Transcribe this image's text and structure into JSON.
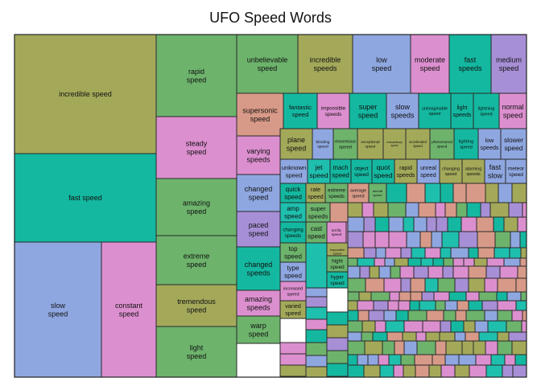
{
  "chart_data": {
    "type": "treemap",
    "title": "UFO Speed Words",
    "palette": [
      "#a4a95a",
      "#14b8a0",
      "#8fa7e0",
      "#dc8fcf",
      "#6db36c",
      "#d89a88",
      "#1fbfae",
      "#a78fd6"
    ],
    "labeled_tiles": [
      {
        "label": "incredible speed",
        "value": 86
      },
      {
        "label": "fast speed",
        "value": 60
      },
      {
        "label": "slow speed",
        "value": 55
      },
      {
        "label": "constant speed",
        "value": 34
      },
      {
        "label": "rapid speed",
        "value": 28
      },
      {
        "label": "steady speed",
        "value": 19
      },
      {
        "label": "amazing speed",
        "value": 18
      },
      {
        "label": "extreme speed",
        "value": 17
      },
      {
        "label": "tremendous speed",
        "value": 13
      },
      {
        "label": "light speed",
        "value": 13
      },
      {
        "label": "unbelievable speed",
        "value": 8
      },
      {
        "label": "incredible speeds",
        "value": 8
      },
      {
        "label": "low speed",
        "value": 8
      },
      {
        "label": "moderate speed",
        "value": 6
      },
      {
        "label": "fast speeds",
        "value": 6
      },
      {
        "label": "medium speed",
        "value": 5
      },
      {
        "label": "supersonic speed",
        "value": 5
      },
      {
        "label": "fantastic speed",
        "value": 3
      },
      {
        "label": "impossible speeds",
        "value": 3
      },
      {
        "label": "super speed",
        "value": 3
      },
      {
        "label": "slow speeds",
        "value": 3
      },
      {
        "label": "unimaginable speed",
        "value": 3
      },
      {
        "label": "light speeds",
        "value": 2
      },
      {
        "label": "lightning speed",
        "value": 2
      },
      {
        "label": "normal speed",
        "value": 2
      },
      {
        "label": "varying speeds",
        "value": 4
      },
      {
        "label": "plane speed",
        "value": 2
      },
      {
        "label": "blinding speed",
        "value": 2
      },
      {
        "label": "enormous speed",
        "value": 2
      },
      {
        "label": "exceptional speed",
        "value": 2
      },
      {
        "label": "extraordinary speed",
        "value": 2
      },
      {
        "label": "accelerated speed",
        "value": 2
      },
      {
        "label": "phenomenal speed",
        "value": 2
      },
      {
        "label": "lighting speed",
        "value": 2
      },
      {
        "label": "low speeds",
        "value": 2
      },
      {
        "label": "slower speed",
        "value": 2
      },
      {
        "label": "changed speed",
        "value": 4
      },
      {
        "label": "unknown speed",
        "value": 2
      },
      {
        "label": "jet speed",
        "value": 2
      },
      {
        "label": "mach speed",
        "value": 2
      },
      {
        "label": "object speed",
        "value": 2
      },
      {
        "label": "quot speed",
        "value": 2
      },
      {
        "label": "rapid speeds",
        "value": 2
      },
      {
        "label": "unreal speed",
        "value": 2
      },
      {
        "label": "changing speed",
        "value": 4
      },
      {
        "label": "alarming speeds",
        "value": 2
      },
      {
        "label": "fast slow",
        "value": 1
      },
      {
        "label": "meteor speed",
        "value": 1
      },
      {
        "label": "paced speed",
        "value": 1
      },
      {
        "label": "quick speed",
        "value": 1
      },
      {
        "label": "rate speed",
        "value": 1
      },
      {
        "label": "extreme speeds",
        "value": 3
      },
      {
        "label": "average speed",
        "value": 2
      },
      {
        "label": "aircraft speed",
        "value": 1
      },
      {
        "label": "changed speeds",
        "value": 2
      },
      {
        "label": "amp speed",
        "value": 1
      },
      {
        "label": "super speeds",
        "value": 1
      },
      {
        "label": "changing speeds",
        "value": 2
      },
      {
        "label": "cast speed",
        "value": 2
      },
      {
        "label": "terrific speed",
        "value": 1
      },
      {
        "label": "top speed",
        "value": 1
      },
      {
        "label": "type speed",
        "value": 1
      },
      {
        "label": "impossible speed",
        "value": 3
      },
      {
        "label": "hight speed",
        "value": 2
      },
      {
        "label": "hyper speed",
        "value": 2
      },
      {
        "label": "amazing speeds",
        "value": 3
      },
      {
        "label": "increased speed",
        "value": 1
      },
      {
        "label": "varied speed",
        "value": 1
      },
      {
        "label": "warp speed",
        "value": 3
      }
    ],
    "unlabeled_small_tiles": "many small unlabeled tiles fill the lower right region"
  }
}
